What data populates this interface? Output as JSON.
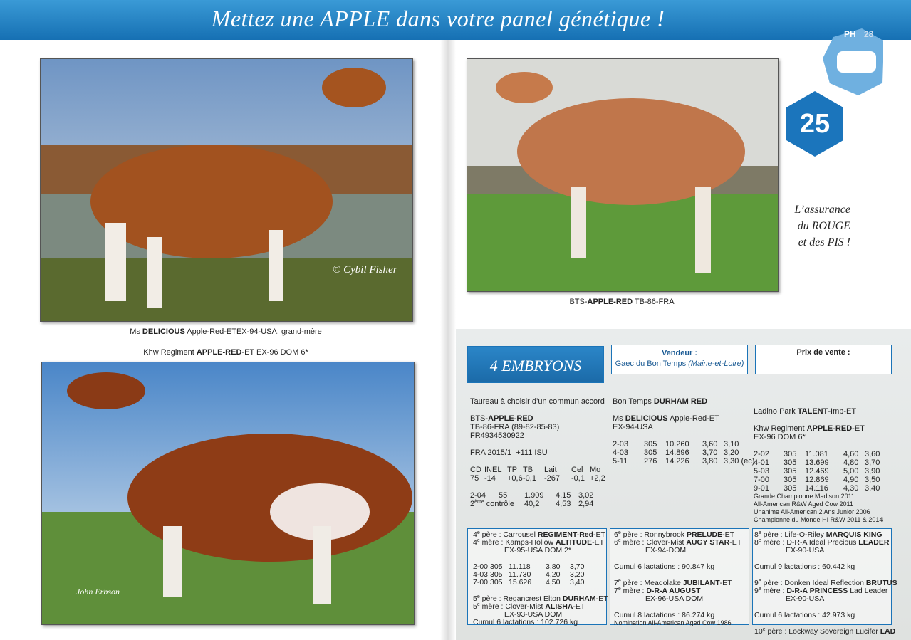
{
  "header": {
    "title": "Mettez une APPLE dans votre panel génétique !"
  },
  "badge": {
    "logo": "PH",
    "page": "28",
    "lot": "25"
  },
  "tagline": [
    "L’assurance",
    "du ROUGE",
    "et des PIS !"
  ],
  "photos": {
    "grandmother_credit": "© Cybil Fisher",
    "mother_credit": "John Erbson"
  },
  "blocks": {
    "caption_grandmother": [
      {
        "t": [
          "Ms ",
          {
            "b": "DELICIOUS"
          },
          " Apple-Red-ETEX-94-USA, grand-mère"
        ]
      }
    ],
    "caption_mother": [
      {
        "t": [
          "Khw Regiment ",
          {
            "b": "APPLE-RED"
          },
          "-ET EX-96 DOM 6*"
        ]
      }
    ],
    "caption_bull": [
      {
        "t": [
          "BTS-",
          {
            "b": "APPLE-RED"
          },
          " TB-86-FRA"
        ]
      }
    ],
    "embryos": [
      {
        "t": [
          "4 EMBRYONS"
        ]
      }
    ],
    "seller": [
      {
        "t": [
          {
            "b": "Vendeur :"
          }
        ]
      },
      {
        "t": [
          "Gaec du Bon Temps ",
          {
            "i": "(Maine-et-Loire)"
          }
        ]
      }
    ],
    "price": [
      {
        "t": [
          {
            "b": "Prix de vente :"
          }
        ]
      }
    ],
    "sire": [
      {
        "t": [
          "Taureau à choisir d’un commun accord"
        ]
      },
      {
        "t": [
          "BTS-",
          {
            "b": "APPLE-RED"
          }
        ],
        "style": "gap"
      },
      {
        "t": [
          "TB-86-FRA (89-82-85-83)"
        ]
      },
      {
        "t": [
          "FR4934530922"
        ]
      },
      {
        "t": [
          "FRA 2015/1  +111 ISU"
        ],
        "style": "gap"
      },
      {
        "cells": [
          "CD",
          "INEL",
          "TP",
          "TB",
          "Lait",
          "Cel",
          "Mo"
        ],
        "style": "gap"
      },
      {
        "cells": [
          "75",
          "-14",
          "+0,6",
          "-0,1",
          "-267",
          "-0,1",
          "+2,2"
        ]
      },
      {
        "cells": [
          "2-04",
          "55",
          "1.909",
          "4,15",
          "3,02"
        ],
        "style": "gap"
      },
      {
        "cells": [
          [
            "2",
            {
              "sup": "ème"
            },
            " contrôle"
          ],
          "40,2",
          "4,53",
          "2,94"
        ]
      }
    ],
    "dam_sire": [
      {
        "t": [
          "Bon Temps ",
          {
            "b": "DURHAM RED"
          }
        ]
      },
      {
        "t": [
          "Ms ",
          {
            "b": "DELICIOUS"
          },
          " Apple-Red-ET"
        ],
        "style": "gap"
      },
      {
        "t": [
          "EX-94-USA"
        ]
      },
      {
        "cells": [
          "2-03",
          "305",
          "10.260",
          "3,60",
          "3,10"
        ],
        "style": "gap"
      },
      {
        "cells": [
          "4-03",
          "305",
          "14.896",
          "3,70",
          "3,20"
        ]
      },
      {
        "cells": [
          "5-11",
          "276",
          "14.226",
          "3,80",
          "3,30 (ec)"
        ]
      }
    ],
    "dam": [
      {
        "t": [
          "Ladino Park ",
          {
            "b": "TALENT"
          },
          "-Imp-ET"
        ]
      },
      {
        "t": [
          "Khw Regiment ",
          {
            "b": "APPLE-RED"
          },
          "-ET"
        ],
        "style": "gap"
      },
      {
        "t": [
          "EX-96 DOM 6*"
        ]
      },
      {
        "cells": [
          "2-02",
          "305",
          "11.081",
          "4,60",
          "3,60"
        ],
        "style": "gap"
      },
      {
        "cells": [
          "4-01",
          "305",
          "13.699",
          "4,80",
          "3,70"
        ]
      },
      {
        "cells": [
          "5-03",
          "305",
          "12.469",
          "5,00",
          "3,90"
        ]
      },
      {
        "cells": [
          "7-00",
          "305",
          "12.869",
          "4,90",
          "3,50"
        ]
      },
      {
        "cells": [
          "9-01",
          "305",
          "14.116",
          "4,30",
          "3,40"
        ]
      },
      {
        "t": [
          "Grande Championne Madison 2011"
        ],
        "style": "small"
      },
      {
        "t": [
          "All-American R&W Aged Cow 2011"
        ],
        "style": "small"
      },
      {
        "t": [
          "Unanime All-American 2 Ans Junior 2006"
        ],
        "style": "small"
      },
      {
        "t": [
          "Championne du Monde HI R&W 2011 & 2014"
        ],
        "style": "small"
      }
    ],
    "pedigree_1": [
      {
        "t": [
          "4",
          {
            "sup": "e"
          },
          " père : Carrousel ",
          {
            "b": "REGIMENT-Red"
          },
          "-ET"
        ]
      },
      {
        "t": [
          "4",
          {
            "sup": "e"
          },
          " mère : Kamps-Hollow ",
          {
            "b": "ALTITUDE"
          },
          "-ET"
        ]
      },
      {
        "t": [
          "EX-95-USA DOM 2*"
        ],
        "style": "indent"
      },
      {
        "cells": [
          "2-00",
          "305",
          "11.118",
          "3,80",
          "3,70"
        ],
        "style": "gap"
      },
      {
        "cells": [
          "4-03",
          "305",
          "11.730",
          "4,20",
          "3,20"
        ]
      },
      {
        "cells": [
          "7-00",
          "305",
          "15.626",
          "4,50",
          "3,40"
        ]
      },
      {
        "t": [
          "5",
          {
            "sup": "e"
          },
          " père : Regancrest Elton ",
          {
            "b": "DURHAM"
          },
          "-ET"
        ],
        "style": "gap"
      },
      {
        "t": [
          "5",
          {
            "sup": "e"
          },
          " mère : Clover-Mist ",
          {
            "b": "ALISHA"
          },
          "-ET"
        ]
      },
      {
        "t": [
          "EX-93-USA DOM"
        ],
        "style": "indent"
      },
      {
        "t": [
          "Cumul 6 lactations : 102.726 kg"
        ]
      }
    ],
    "pedigree_2": [
      {
        "t": [
          "6",
          {
            "sup": "e"
          },
          " père : Ronnybrook ",
          {
            "b": "PRELUDE"
          },
          "-ET"
        ]
      },
      {
        "t": [
          "6",
          {
            "sup": "e"
          },
          " mère : Clover-Mist ",
          {
            "b": "AUGY STAR"
          },
          "-ET"
        ]
      },
      {
        "t": [
          "EX-94-DOM"
        ],
        "style": "indent"
      },
      {
        "t": [
          "Cumul 6 lactations : 90.847 kg"
        ],
        "style": "gap"
      },
      {
        "t": [
          "7",
          {
            "sup": "e"
          },
          " père : Meadolake ",
          {
            "b": "JUBILANT"
          },
          "-ET"
        ],
        "style": "gap"
      },
      {
        "t": [
          "7",
          {
            "sup": "e"
          },
          " mère : ",
          {
            "b": "D-R-A AUGUST"
          }
        ]
      },
      {
        "t": [
          "EX-96-USA DOM"
        ],
        "style": "indent"
      },
      {
        "t": [
          "Cumul 8 lactations : 86.274 kg"
        ],
        "style": "gap"
      },
      {
        "t": [
          "Nomination All-American Aged Cow 1986"
        ],
        "style": "small"
      }
    ],
    "pedigree_3": [
      {
        "t": [
          "8",
          {
            "sup": "e"
          },
          " père : Life-O-Riley ",
          {
            "b": "MARQUIS KING"
          }
        ]
      },
      {
        "t": [
          "8",
          {
            "sup": "e"
          },
          " mère : D-R-A Ideal Precious ",
          {
            "b": "LEADER"
          }
        ]
      },
      {
        "t": [
          "EX-90-USA"
        ],
        "style": "indent"
      },
      {
        "t": [
          "Cumul 9 lactations : 60.442 kg"
        ],
        "style": "gap"
      },
      {
        "t": [
          "9",
          {
            "sup": "e"
          },
          " père : Donken Ideal Reflection ",
          {
            "b": "BRUTUS"
          }
        ],
        "style": "gap"
      },
      {
        "t": [
          "9",
          {
            "sup": "e"
          },
          " mère : ",
          {
            "b": "D-R-A PRINCESS"
          },
          " Lad Leader"
        ]
      },
      {
        "t": [
          "EX-90-USA"
        ],
        "style": "indent"
      },
      {
        "t": [
          "Cumul 6 lactations : 42.973 kg"
        ],
        "style": "gap"
      },
      {
        "t": [
          "10",
          {
            "sup": "e"
          },
          " père : Lockway Sovereign Lucifer ",
          {
            "b": "LAD"
          }
        ],
        "style": "gap"
      }
    ]
  }
}
